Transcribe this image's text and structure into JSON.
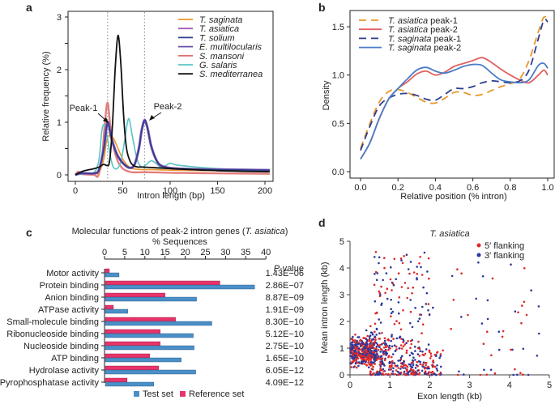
{
  "chart_data": [
    {
      "panel": "a",
      "type": "line",
      "title": "",
      "xlabel": "Intron length (bp)",
      "ylabel": "Relative frequency (%)",
      "xlim": [
        0,
        205
      ],
      "ylim": [
        0,
        3
      ],
      "xticks": [
        0,
        50,
        100,
        150,
        200
      ],
      "yticks": [
        0,
        1,
        2,
        3
      ],
      "legend_position": "top-right",
      "annotations": [
        {
          "text": "Peak-1",
          "x": 34,
          "y": 1.0
        },
        {
          "text": "Peak-2",
          "x": 73,
          "y": 1.05
        }
      ],
      "reference_lines_x": [
        34,
        73
      ],
      "series": [
        {
          "name": "T. saginata",
          "color": "#e8972c",
          "x": [
            0,
            5,
            10,
            20,
            25,
            30,
            33,
            36,
            40,
            45,
            50,
            55,
            60,
            70,
            80,
            100,
            150,
            205
          ],
          "y": [
            0,
            0.03,
            0.02,
            0.02,
            0.05,
            0.3,
            0.65,
            0.75,
            0.7,
            0.5,
            0.3,
            0.18,
            0.12,
            0.1,
            0.1,
            0.09,
            0.08,
            0.07
          ]
        },
        {
          "name": "T. asiatica",
          "color": "#a55bbd",
          "x": [
            0,
            5,
            10,
            20,
            25,
            30,
            34,
            38,
            45,
            55,
            62,
            67,
            70,
            73,
            76,
            80,
            85,
            90,
            100,
            120,
            150,
            205
          ],
          "y": [
            0,
            0.03,
            0.03,
            0.03,
            0.1,
            0.5,
            1.0,
            0.7,
            0.35,
            0.15,
            0.18,
            0.5,
            0.85,
            1.05,
            0.9,
            0.55,
            0.3,
            0.18,
            0.13,
            0.11,
            0.1,
            0.09
          ]
        },
        {
          "name": "T. solium",
          "color": "#2d3e8e",
          "x": [
            0,
            5,
            10,
            20,
            25,
            30,
            34,
            38,
            45,
            55,
            62,
            67,
            70,
            73,
            76,
            80,
            85,
            90,
            100,
            120,
            150,
            205
          ],
          "y": [
            0,
            0.03,
            0.03,
            0.03,
            0.1,
            0.5,
            1.0,
            0.7,
            0.35,
            0.15,
            0.18,
            0.5,
            0.85,
            1.04,
            0.9,
            0.55,
            0.3,
            0.18,
            0.13,
            0.11,
            0.1,
            0.09
          ]
        },
        {
          "name": "E. multilocularis",
          "color": "#6a4fa8",
          "x": [
            0,
            5,
            10,
            20,
            25,
            30,
            34,
            38,
            45,
            55,
            62,
            67,
            70,
            73,
            76,
            80,
            85,
            90,
            100,
            120,
            150,
            205
          ],
          "y": [
            0,
            0.03,
            0.03,
            0.03,
            0.1,
            0.5,
            1.0,
            0.7,
            0.35,
            0.15,
            0.18,
            0.5,
            0.85,
            1.02,
            0.9,
            0.55,
            0.3,
            0.18,
            0.13,
            0.11,
            0.1,
            0.09
          ]
        },
        {
          "name": "S. mansoni",
          "color": "#e07070",
          "x": [
            0,
            3,
            6,
            10,
            20,
            24,
            28,
            31,
            34,
            37,
            40,
            45,
            50,
            55,
            60,
            70,
            80,
            100,
            150,
            205
          ],
          "y": [
            0,
            0.06,
            0.02,
            0.01,
            0.0,
            -0.02,
            0.3,
            0.95,
            1.37,
            0.9,
            0.55,
            0.25,
            0.12,
            0.07,
            0.05,
            0.05,
            0.05,
            0.04,
            0.03,
            0.02
          ]
        },
        {
          "name": "G. salaris",
          "color": "#5bc4c4",
          "x": [
            0,
            10,
            20,
            25,
            28,
            31,
            34,
            37,
            40,
            44,
            48,
            52,
            55,
            57,
            60,
            65,
            70,
            75,
            80,
            85,
            90,
            95,
            100,
            110,
            150,
            205
          ],
          "y": [
            0,
            0.02,
            0.05,
            0.3,
            0.85,
            0.95,
            0.7,
            0.35,
            0.15,
            0.12,
            0.25,
            0.65,
            1.0,
            1.05,
            0.75,
            0.3,
            0.15,
            0.2,
            0.27,
            0.22,
            0.15,
            0.17,
            0.22,
            0.18,
            0.12,
            0.1
          ]
        },
        {
          "name": "S. mediterranea",
          "color": "#111111",
          "x": [
            0,
            5,
            10,
            15,
            20,
            25,
            30,
            33,
            36,
            39,
            42,
            45,
            48,
            51,
            54,
            58,
            62,
            66,
            70,
            80,
            100,
            150,
            205
          ],
          "y": [
            0,
            0.05,
            0.08,
            0.1,
            0.12,
            0.15,
            0.2,
            0.18,
            0.25,
            0.9,
            2.0,
            2.65,
            2.1,
            1.1,
            0.5,
            0.25,
            0.17,
            0.15,
            0.15,
            0.14,
            0.12,
            0.08,
            0.06
          ]
        }
      ]
    },
    {
      "panel": "b",
      "type": "line",
      "title": "",
      "xlabel": "Relative position (% intron)",
      "ylabel": "Density",
      "xlim": [
        0,
        1.0
      ],
      "ylim": [
        0,
        1.6
      ],
      "xticks": [
        0.0,
        0.2,
        0.4,
        0.6,
        0.8,
        1.0
      ],
      "yticks": [
        0.0,
        0.5,
        1.0,
        1.5
      ],
      "legend_position": "top-left",
      "series": [
        {
          "name": "T. asiatica peak-1",
          "species": "T. asiatica",
          "suffix": " peak-1",
          "color": "#e8972c",
          "dashed": true,
          "x": [
            0,
            0.05,
            0.1,
            0.15,
            0.2,
            0.25,
            0.3,
            0.35,
            0.4,
            0.45,
            0.5,
            0.55,
            0.6,
            0.65,
            0.7,
            0.75,
            0.8,
            0.85,
            0.9,
            0.95,
            0.98,
            1.0
          ],
          "y": [
            0.24,
            0.5,
            0.72,
            0.83,
            0.85,
            0.82,
            0.77,
            0.72,
            0.71,
            0.76,
            0.82,
            0.82,
            0.79,
            0.8,
            0.84,
            0.88,
            0.91,
            0.96,
            1.15,
            1.45,
            1.6,
            1.57
          ]
        },
        {
          "name": "T. asiatica peak-2",
          "species": "T. asiatica",
          "suffix": " peak-2",
          "color": "#e06060",
          "dashed": false,
          "x": [
            0,
            0.05,
            0.1,
            0.15,
            0.2,
            0.25,
            0.3,
            0.35,
            0.4,
            0.45,
            0.5,
            0.55,
            0.6,
            0.65,
            0.7,
            0.75,
            0.8,
            0.85,
            0.9,
            0.95,
            0.98,
            1.0
          ],
          "y": [
            0.13,
            0.3,
            0.55,
            0.75,
            0.86,
            0.93,
            1.01,
            1.04,
            1.0,
            1.03,
            1.09,
            1.12,
            1.15,
            1.18,
            1.13,
            1.06,
            1.0,
            0.95,
            0.92,
            1.0,
            1.05,
            1.0
          ]
        },
        {
          "name": "T. saginata peak-1",
          "species": "T. saginata",
          "suffix": " peak-1",
          "color": "#2d3e8e",
          "dashed": true,
          "x": [
            0,
            0.05,
            0.1,
            0.15,
            0.2,
            0.25,
            0.3,
            0.35,
            0.4,
            0.45,
            0.5,
            0.55,
            0.6,
            0.65,
            0.7,
            0.75,
            0.8,
            0.85,
            0.9,
            0.95,
            0.98,
            1.0
          ],
          "y": [
            0.22,
            0.47,
            0.68,
            0.76,
            0.8,
            0.81,
            0.79,
            0.75,
            0.74,
            0.8,
            0.86,
            0.86,
            0.88,
            0.92,
            0.94,
            0.93,
            0.92,
            0.94,
            1.05,
            1.38,
            1.57,
            1.55
          ]
        },
        {
          "name": "T. saginata peak-2",
          "species": "T. saginata",
          "suffix": " peak-2",
          "color": "#4a7cc7",
          "dashed": false,
          "x": [
            0,
            0.05,
            0.1,
            0.15,
            0.2,
            0.25,
            0.3,
            0.35,
            0.4,
            0.45,
            0.5,
            0.55,
            0.6,
            0.65,
            0.7,
            0.75,
            0.8,
            0.85,
            0.9,
            0.95,
            0.98,
            1.0
          ],
          "y": [
            0.13,
            0.3,
            0.55,
            0.75,
            0.86,
            0.96,
            1.05,
            1.08,
            1.04,
            1.02,
            1.05,
            1.09,
            1.11,
            1.1,
            1.02,
            0.95,
            0.93,
            0.92,
            0.95,
            1.1,
            1.12,
            1.07
          ]
        }
      ]
    },
    {
      "panel": "c",
      "type": "bar",
      "orientation": "horizontal",
      "title": "Molecular functions of peak-2 intron genes (T. asiatica)",
      "title_main": "Molecular functions of peak-2 intron genes (",
      "title_italic": "T. asiatica",
      "title_end": ")",
      "xlabel": "% Sequences",
      "xlim": [
        0,
        40
      ],
      "xticks": [
        0,
        5,
        10,
        15,
        20,
        25,
        30,
        35,
        40
      ],
      "pvalue_header": "P",
      "pvalue_header_suffix": "-value",
      "legend_position": "bottom",
      "categories": [
        "Motor activity",
        "Protein binding",
        "Anion binding",
        "ATPase activity",
        "Small-molecule binding",
        "Ribonucleoside binding",
        "Nucleoside binding",
        "ATP binding",
        "Hydrolase activity",
        "Pyrophosphatase activity"
      ],
      "pvalues": [
        "1.43E−06",
        "2.86E−07",
        "8.87E−09",
        "1.91E−09",
        "8.30E−10",
        "5.12E−10",
        "2.75E−10",
        "1.65E−10",
        "6.05E−12",
        "4.09E−12"
      ],
      "series": [
        {
          "name": "Test set",
          "color": "#4a8fc7",
          "values": [
            3.6,
            37.2,
            22.8,
            5.8,
            26.6,
            22.0,
            22.2,
            19.0,
            22.6,
            12.2
          ]
        },
        {
          "name": "Reference set",
          "color": "#e8336a",
          "values": [
            1.2,
            28.6,
            15.0,
            2.2,
            17.6,
            13.8,
            13.8,
            11.2,
            13.4,
            5.6
          ]
        }
      ]
    },
    {
      "panel": "d",
      "type": "scatter",
      "title": "T. asiatica",
      "xlabel": "Exon  length (kb)",
      "ylabel": "Mean intron length (kb)",
      "xlim": [
        0,
        5
      ],
      "ylim": [
        0,
        5
      ],
      "xticks": [
        0,
        1,
        2,
        3,
        4,
        5
      ],
      "yticks": [
        0,
        1,
        2,
        3,
        4,
        5
      ],
      "legend_position": "top-right",
      "series": [
        {
          "name": "5′ flanking",
          "color": "#e02828",
          "n_points_approx": 1500,
          "distribution": "dense cluster near x 0-1.5 kb, y 0-1.5 kb; sparse scatter up to x 5 kb, y 5 kb"
        },
        {
          "name": "3′ flanking",
          "color": "#2b3a9a",
          "n_points_approx": 1500,
          "distribution": "dense cluster near x 0-1.5 kb, y 0-1.5 kb; sparse scatter up to x 5 kb, y 5 kb"
        }
      ]
    }
  ],
  "panel_labels": [
    "a",
    "b",
    "c",
    "d"
  ]
}
